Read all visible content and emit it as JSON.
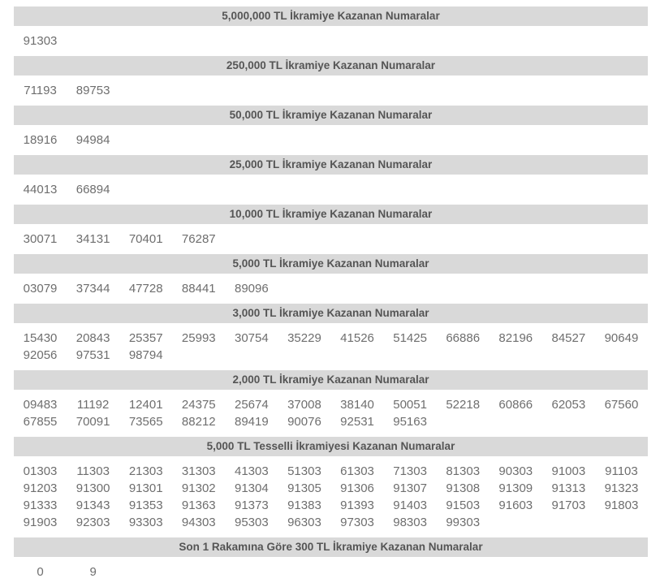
{
  "page": {
    "language": "tr",
    "kind": "lottery-results",
    "colors": {
      "background": "#ffffff",
      "section_header_bg": "#d9d9d9",
      "section_header_text": "#555555",
      "number_text": "#6e6e6e"
    },
    "columns_per_row": 12
  },
  "sections": [
    {
      "title": "5,000,000 TL İkramiye Kazanan Numaralar",
      "rows": [
        [
          "91303"
        ]
      ]
    },
    {
      "title": "250,000 TL İkramiye Kazanan Numaralar",
      "rows": [
        [
          "71193",
          "89753"
        ]
      ]
    },
    {
      "title": "50,000 TL İkramiye Kazanan Numaralar",
      "rows": [
        [
          "18916",
          "94984"
        ]
      ]
    },
    {
      "title": "25,000 TL İkramiye Kazanan Numaralar",
      "rows": [
        [
          "44013",
          "66894"
        ]
      ]
    },
    {
      "title": "10,000 TL İkramiye Kazanan Numaralar",
      "rows": [
        [
          "30071",
          "34131",
          "70401",
          "76287"
        ]
      ]
    },
    {
      "title": "5,000 TL İkramiye Kazanan Numaralar",
      "rows": [
        [
          "03079",
          "37344",
          "47728",
          "88441",
          "89096"
        ]
      ]
    },
    {
      "title": "3,000 TL İkramiye Kazanan Numaralar",
      "rows": [
        [
          "15430",
          "20843",
          "25357",
          "25993",
          "30754",
          "35229",
          "41526",
          "51425",
          "66886",
          "82196",
          "84527",
          "90649"
        ],
        [
          "92056",
          "97531",
          "98794"
        ]
      ]
    },
    {
      "title": "2,000 TL İkramiye Kazanan Numaralar",
      "rows": [
        [
          "09483",
          "11192",
          "12401",
          "24375",
          "25674",
          "37008",
          "38140",
          "50051",
          "52218",
          "60866",
          "62053",
          "67560"
        ],
        [
          "67855",
          "70091",
          "73565",
          "88212",
          "89419",
          "90076",
          "92531",
          "95163"
        ]
      ]
    },
    {
      "title": "5,000 TL Tesselli İkramiyesi Kazanan Numaralar",
      "rows": [
        [
          "01303",
          "11303",
          "21303",
          "31303",
          "41303",
          "51303",
          "61303",
          "71303",
          "81303",
          "90303",
          "91003",
          "91103"
        ],
        [
          "91203",
          "91300",
          "91301",
          "91302",
          "91304",
          "91305",
          "91306",
          "91307",
          "91308",
          "91309",
          "91313",
          "91323"
        ],
        [
          "91333",
          "91343",
          "91353",
          "91363",
          "91373",
          "91383",
          "91393",
          "91403",
          "91503",
          "91603",
          "91703",
          "91803"
        ],
        [
          "91903",
          "92303",
          "93303",
          "94303",
          "95303",
          "96303",
          "97303",
          "98303",
          "99303"
        ]
      ]
    },
    {
      "title": "Son 1 Rakamına Göre 300 TL İkramiye Kazanan Numaralar",
      "rows": [
        [
          "0",
          "9"
        ]
      ]
    }
  ]
}
